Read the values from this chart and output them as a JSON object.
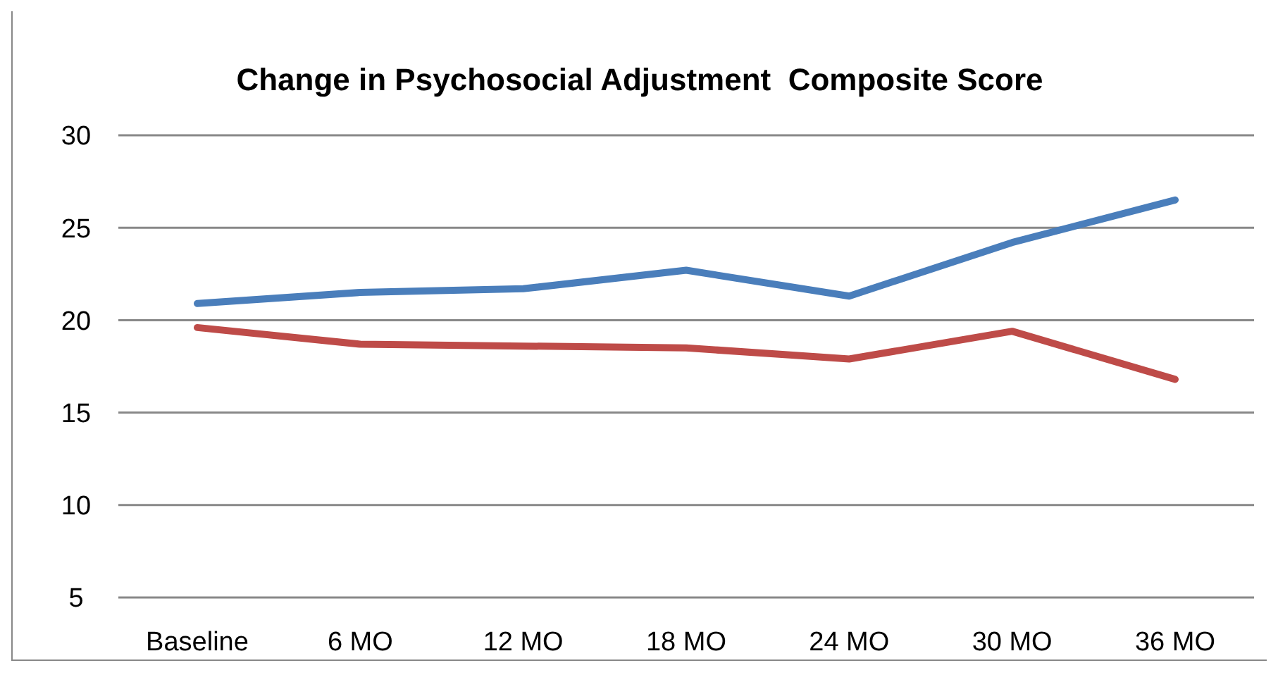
{
  "chart_data": {
    "type": "line",
    "title": "Change in Psychosocial Adjustment  Composite Score",
    "categories": [
      "Baseline",
      "6 MO",
      "12 MO",
      "18 MO",
      "24 MO",
      "30 MO",
      "36 MO"
    ],
    "series": [
      {
        "color": "#4a7ebb",
        "values": [
          20.9,
          21.5,
          21.7,
          22.7,
          21.3,
          24.2,
          26.5
        ]
      },
      {
        "color": "#be4b48",
        "values": [
          19.6,
          18.7,
          18.6,
          18.5,
          17.9,
          19.4,
          16.8
        ]
      }
    ],
    "ylim": [
      5,
      30
    ],
    "yticks": [
      5,
      10,
      15,
      20,
      25,
      30
    ],
    "grid": "y",
    "legend": false,
    "marker": "none",
    "line_style": "solid"
  }
}
